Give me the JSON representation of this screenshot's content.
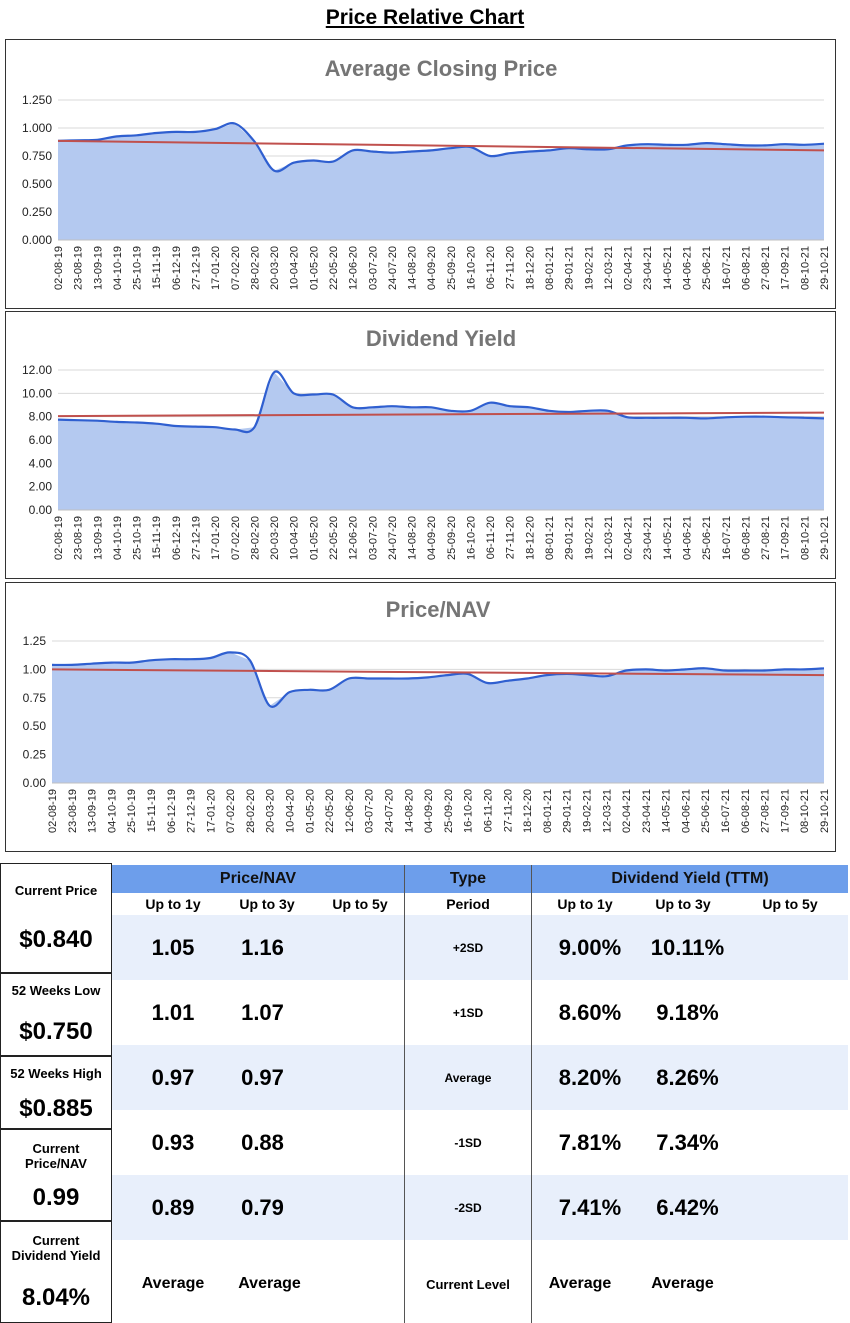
{
  "page": {
    "title": "Price Relative Chart"
  },
  "dates": [
    "02-08-19",
    "23-08-19",
    "13-09-19",
    "04-10-19",
    "25-10-19",
    "15-11-19",
    "06-12-19",
    "27-12-19",
    "17-01-20",
    "07-02-20",
    "28-02-20",
    "20-03-20",
    "10-04-20",
    "01-05-20",
    "22-05-20",
    "12-06-20",
    "03-07-20",
    "24-07-20",
    "14-08-20",
    "04-09-20",
    "25-09-20",
    "16-10-20",
    "06-11-20",
    "27-11-20",
    "18-12-20",
    "08-01-21",
    "29-01-21",
    "19-02-21",
    "12-03-21",
    "02-04-21",
    "23-04-21",
    "14-05-21",
    "04-06-21",
    "25-06-21",
    "16-07-21",
    "06-08-21",
    "27-08-21",
    "17-09-21",
    "08-10-21",
    "29-10-21"
  ],
  "colors": {
    "series_line": "#2f5fd0",
    "series_fill": "#b4c9f0",
    "trend": "#c0504d",
    "header": "#6d9eeb",
    "band": "#e8effb"
  },
  "chart_data": [
    {
      "type": "area",
      "title": "Average Closing Price",
      "ylim": [
        0,
        1.25
      ],
      "yticks": [
        "0.000",
        "0.250",
        "0.500",
        "0.750",
        "1.000",
        "1.250"
      ],
      "series": [
        {
          "name": "Average Closing Price",
          "values": [
            0.885,
            0.89,
            0.895,
            0.925,
            0.935,
            0.955,
            0.965,
            0.965,
            0.99,
            1.04,
            0.88,
            0.62,
            0.69,
            0.71,
            0.7,
            0.8,
            0.79,
            0.78,
            0.79,
            0.8,
            0.82,
            0.83,
            0.75,
            0.775,
            0.79,
            0.8,
            0.82,
            0.81,
            0.81,
            0.845,
            0.855,
            0.85,
            0.85,
            0.865,
            0.855,
            0.845,
            0.845,
            0.855,
            0.85,
            0.86
          ]
        }
      ],
      "trend": [
        0.885,
        0.8
      ]
    },
    {
      "type": "area",
      "title": "Dividend Yield",
      "ylim": [
        0,
        12
      ],
      "yticks": [
        "0.00",
        "2.00",
        "4.00",
        "6.00",
        "8.00",
        "10.00",
        "12.00"
      ],
      "series": [
        {
          "name": "Dividend Yield",
          "values": [
            7.75,
            7.7,
            7.65,
            7.55,
            7.5,
            7.4,
            7.2,
            7.15,
            7.1,
            6.9,
            7.1,
            11.8,
            10.0,
            9.9,
            9.9,
            8.8,
            8.8,
            8.9,
            8.8,
            8.8,
            8.5,
            8.5,
            9.2,
            8.9,
            8.8,
            8.5,
            8.4,
            8.5,
            8.5,
            7.95,
            7.9,
            7.9,
            7.9,
            7.85,
            7.95,
            8.0,
            8.0,
            7.95,
            7.9,
            7.85
          ]
        }
      ],
      "trend": [
        8.05,
        8.35
      ]
    },
    {
      "type": "area",
      "title": "Price/NAV",
      "ylim": [
        0,
        1.25
      ],
      "yticks": [
        "0.00",
        "0.25",
        "0.50",
        "0.75",
        "1.00",
        "1.25"
      ],
      "series": [
        {
          "name": "Price/NAV",
          "values": [
            1.04,
            1.04,
            1.05,
            1.06,
            1.06,
            1.08,
            1.09,
            1.09,
            1.1,
            1.15,
            1.08,
            0.68,
            0.8,
            0.82,
            0.82,
            0.92,
            0.92,
            0.92,
            0.92,
            0.93,
            0.95,
            0.96,
            0.88,
            0.9,
            0.92,
            0.95,
            0.96,
            0.95,
            0.94,
            0.99,
            1.0,
            0.99,
            1.0,
            1.01,
            0.99,
            0.99,
            0.99,
            1.0,
            1.0,
            1.01
          ]
        }
      ],
      "trend": [
        1.0,
        0.95
      ]
    }
  ],
  "left_stats": [
    {
      "label": "Current Price",
      "value": "$0.840"
    },
    {
      "label": "52 Weeks Low",
      "value": "$0.750"
    },
    {
      "label": "52 Weeks High",
      "value": "$0.885"
    },
    {
      "label": "Current Price/NAV",
      "value": "0.99"
    },
    {
      "label": "Current Dividend Yield",
      "value": "8.04%"
    }
  ],
  "table": {
    "headers": {
      "pnav": "Price/NAV",
      "type": "Type",
      "dy": "Dividend Yield (TTM)"
    },
    "subheaders": {
      "up1": "Up to 1y",
      "up3": "Up to 3y",
      "up5": "Up to 5y",
      "period": "Period"
    },
    "rows": [
      {
        "type": "+2SD",
        "pnav1": "1.05",
        "pnav3": "1.16",
        "pnav5": "",
        "dy1": "9.00%",
        "dy3": "10.11%",
        "dy5": ""
      },
      {
        "type": "+1SD",
        "pnav1": "1.01",
        "pnav3": "1.07",
        "pnav5": "",
        "dy1": "8.60%",
        "dy3": "9.18%",
        "dy5": ""
      },
      {
        "type": "Average",
        "pnav1": "0.97",
        "pnav3": "0.97",
        "pnav5": "",
        "dy1": "8.20%",
        "dy3": "8.26%",
        "dy5": ""
      },
      {
        "type": "-1SD",
        "pnav1": "0.93",
        "pnav3": "0.88",
        "pnav5": "",
        "dy1": "7.81%",
        "dy3": "7.34%",
        "dy5": ""
      },
      {
        "type": "-2SD",
        "pnav1": "0.89",
        "pnav3": "0.79",
        "pnav5": "",
        "dy1": "7.41%",
        "dy3": "6.42%",
        "dy5": ""
      }
    ],
    "footer": {
      "type": "Current Level",
      "pnav1": "Average",
      "pnav3": "Average",
      "dy1": "Average",
      "dy3": "Average"
    }
  }
}
